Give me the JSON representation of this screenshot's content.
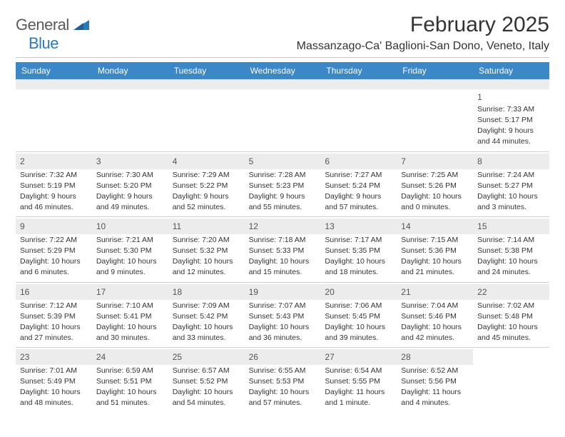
{
  "brand": {
    "word1": "General",
    "word2": "Blue"
  },
  "title": "February 2025",
  "location": "Massanzago-Ca' Baglioni-San Dono, Veneto, Italy",
  "colors": {
    "header_bar": "#3b87c8",
    "shade": "#ececec",
    "text": "#333333",
    "brand_gray": "#5a5a5a",
    "brand_blue": "#2a7ab9"
  },
  "typography": {
    "title_fontsize": 30,
    "location_fontsize": 16,
    "dow_fontsize": 12,
    "body_fontsize": 10.5
  },
  "dow": [
    "Sunday",
    "Monday",
    "Tuesday",
    "Wednesday",
    "Thursday",
    "Friday",
    "Saturday"
  ],
  "weeks": [
    [
      null,
      null,
      null,
      null,
      null,
      null,
      {
        "n": "1",
        "sr": "Sunrise: 7:33 AM",
        "ss": "Sunset: 5:17 PM",
        "dl1": "Daylight: 9 hours",
        "dl2": "and 44 minutes."
      }
    ],
    [
      {
        "n": "2",
        "sr": "Sunrise: 7:32 AM",
        "ss": "Sunset: 5:19 PM",
        "dl1": "Daylight: 9 hours",
        "dl2": "and 46 minutes."
      },
      {
        "n": "3",
        "sr": "Sunrise: 7:30 AM",
        "ss": "Sunset: 5:20 PM",
        "dl1": "Daylight: 9 hours",
        "dl2": "and 49 minutes."
      },
      {
        "n": "4",
        "sr": "Sunrise: 7:29 AM",
        "ss": "Sunset: 5:22 PM",
        "dl1": "Daylight: 9 hours",
        "dl2": "and 52 minutes."
      },
      {
        "n": "5",
        "sr": "Sunrise: 7:28 AM",
        "ss": "Sunset: 5:23 PM",
        "dl1": "Daylight: 9 hours",
        "dl2": "and 55 minutes."
      },
      {
        "n": "6",
        "sr": "Sunrise: 7:27 AM",
        "ss": "Sunset: 5:24 PM",
        "dl1": "Daylight: 9 hours",
        "dl2": "and 57 minutes."
      },
      {
        "n": "7",
        "sr": "Sunrise: 7:25 AM",
        "ss": "Sunset: 5:26 PM",
        "dl1": "Daylight: 10 hours",
        "dl2": "and 0 minutes."
      },
      {
        "n": "8",
        "sr": "Sunrise: 7:24 AM",
        "ss": "Sunset: 5:27 PM",
        "dl1": "Daylight: 10 hours",
        "dl2": "and 3 minutes."
      }
    ],
    [
      {
        "n": "9",
        "sr": "Sunrise: 7:22 AM",
        "ss": "Sunset: 5:29 PM",
        "dl1": "Daylight: 10 hours",
        "dl2": "and 6 minutes."
      },
      {
        "n": "10",
        "sr": "Sunrise: 7:21 AM",
        "ss": "Sunset: 5:30 PM",
        "dl1": "Daylight: 10 hours",
        "dl2": "and 9 minutes."
      },
      {
        "n": "11",
        "sr": "Sunrise: 7:20 AM",
        "ss": "Sunset: 5:32 PM",
        "dl1": "Daylight: 10 hours",
        "dl2": "and 12 minutes."
      },
      {
        "n": "12",
        "sr": "Sunrise: 7:18 AM",
        "ss": "Sunset: 5:33 PM",
        "dl1": "Daylight: 10 hours",
        "dl2": "and 15 minutes."
      },
      {
        "n": "13",
        "sr": "Sunrise: 7:17 AM",
        "ss": "Sunset: 5:35 PM",
        "dl1": "Daylight: 10 hours",
        "dl2": "and 18 minutes."
      },
      {
        "n": "14",
        "sr": "Sunrise: 7:15 AM",
        "ss": "Sunset: 5:36 PM",
        "dl1": "Daylight: 10 hours",
        "dl2": "and 21 minutes."
      },
      {
        "n": "15",
        "sr": "Sunrise: 7:14 AM",
        "ss": "Sunset: 5:38 PM",
        "dl1": "Daylight: 10 hours",
        "dl2": "and 24 minutes."
      }
    ],
    [
      {
        "n": "16",
        "sr": "Sunrise: 7:12 AM",
        "ss": "Sunset: 5:39 PM",
        "dl1": "Daylight: 10 hours",
        "dl2": "and 27 minutes."
      },
      {
        "n": "17",
        "sr": "Sunrise: 7:10 AM",
        "ss": "Sunset: 5:41 PM",
        "dl1": "Daylight: 10 hours",
        "dl2": "and 30 minutes."
      },
      {
        "n": "18",
        "sr": "Sunrise: 7:09 AM",
        "ss": "Sunset: 5:42 PM",
        "dl1": "Daylight: 10 hours",
        "dl2": "and 33 minutes."
      },
      {
        "n": "19",
        "sr": "Sunrise: 7:07 AM",
        "ss": "Sunset: 5:43 PM",
        "dl1": "Daylight: 10 hours",
        "dl2": "and 36 minutes."
      },
      {
        "n": "20",
        "sr": "Sunrise: 7:06 AM",
        "ss": "Sunset: 5:45 PM",
        "dl1": "Daylight: 10 hours",
        "dl2": "and 39 minutes."
      },
      {
        "n": "21",
        "sr": "Sunrise: 7:04 AM",
        "ss": "Sunset: 5:46 PM",
        "dl1": "Daylight: 10 hours",
        "dl2": "and 42 minutes."
      },
      {
        "n": "22",
        "sr": "Sunrise: 7:02 AM",
        "ss": "Sunset: 5:48 PM",
        "dl1": "Daylight: 10 hours",
        "dl2": "and 45 minutes."
      }
    ],
    [
      {
        "n": "23",
        "sr": "Sunrise: 7:01 AM",
        "ss": "Sunset: 5:49 PM",
        "dl1": "Daylight: 10 hours",
        "dl2": "and 48 minutes."
      },
      {
        "n": "24",
        "sr": "Sunrise: 6:59 AM",
        "ss": "Sunset: 5:51 PM",
        "dl1": "Daylight: 10 hours",
        "dl2": "and 51 minutes."
      },
      {
        "n": "25",
        "sr": "Sunrise: 6:57 AM",
        "ss": "Sunset: 5:52 PM",
        "dl1": "Daylight: 10 hours",
        "dl2": "and 54 minutes."
      },
      {
        "n": "26",
        "sr": "Sunrise: 6:55 AM",
        "ss": "Sunset: 5:53 PM",
        "dl1": "Daylight: 10 hours",
        "dl2": "and 57 minutes."
      },
      {
        "n": "27",
        "sr": "Sunrise: 6:54 AM",
        "ss": "Sunset: 5:55 PM",
        "dl1": "Daylight: 11 hours",
        "dl2": "and 1 minute."
      },
      {
        "n": "28",
        "sr": "Sunrise: 6:52 AM",
        "ss": "Sunset: 5:56 PM",
        "dl1": "Daylight: 11 hours",
        "dl2": "and 4 minutes."
      },
      null
    ]
  ]
}
